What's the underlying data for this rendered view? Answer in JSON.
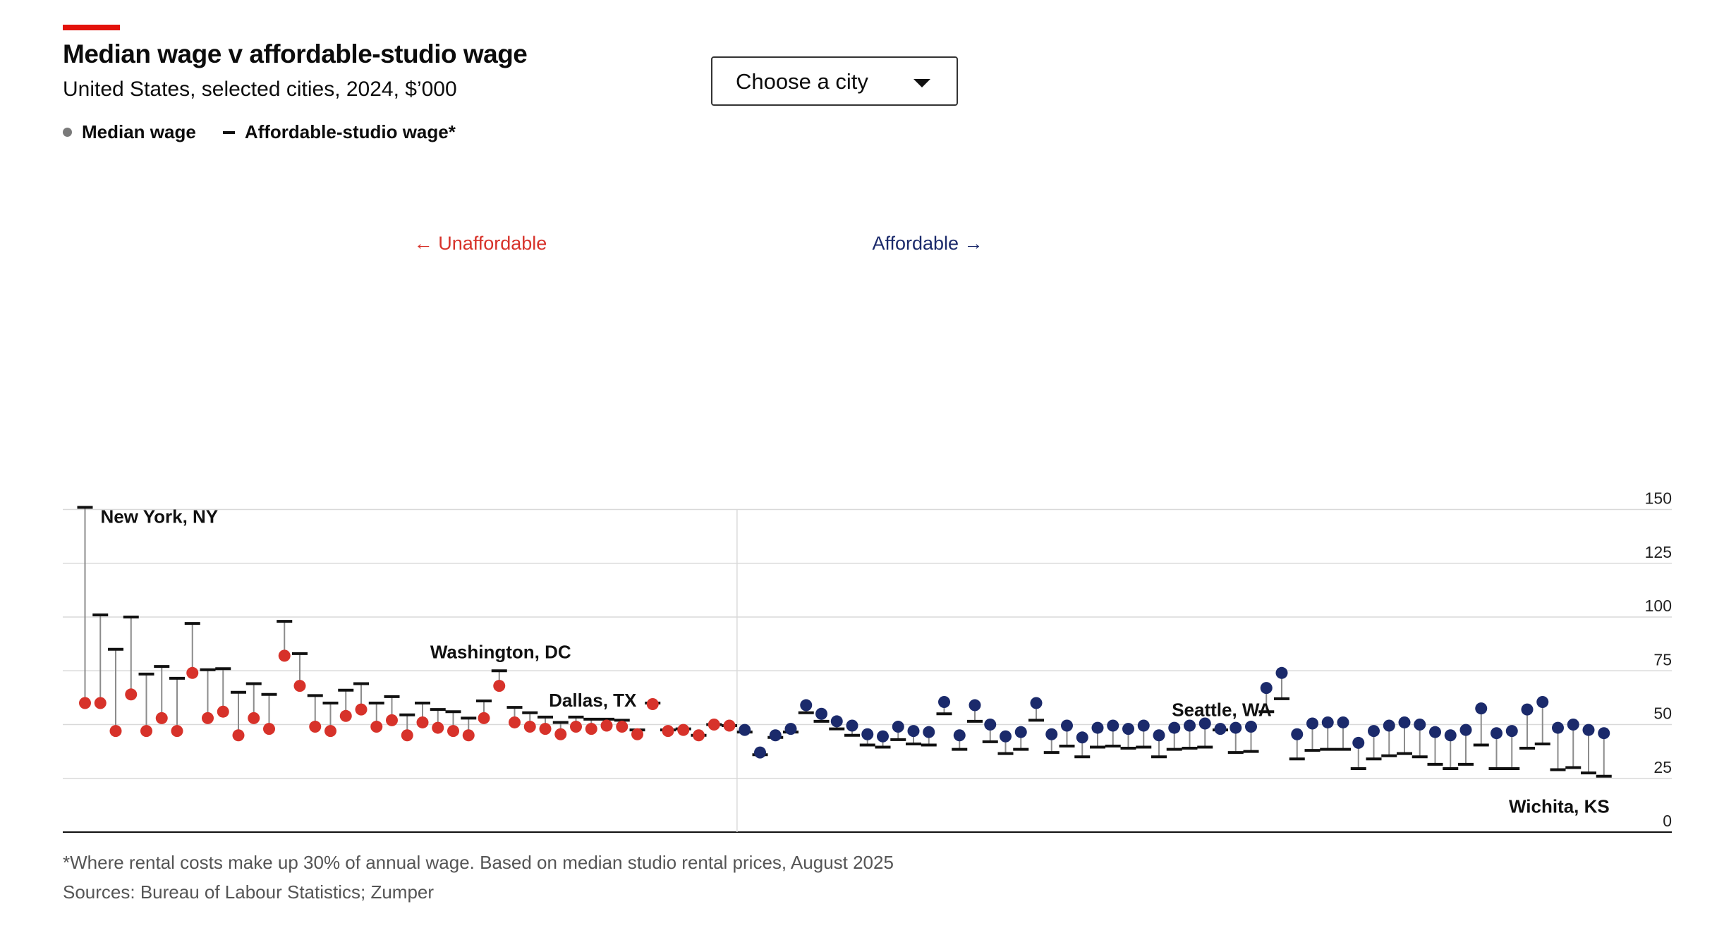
{
  "header": {
    "title": "Median wage v affordable-studio wage",
    "subtitle": "United States, selected cities, 2024, $’000"
  },
  "legend": {
    "median_label": "Median wage",
    "studio_label": "Affordable-studio wage*"
  },
  "dropdown": {
    "label": "Choose a city"
  },
  "regions": {
    "left_label": "← Unaffordable",
    "right_label": "Affordable →"
  },
  "footer": {
    "note": "*Where rental costs make up 30% of annual wage. Based on median studio rental prices, August 2025",
    "source": "Sources: Bureau of Labour Statistics; Zumper"
  },
  "colors": {
    "unaffordable": "#d7322a",
    "affordable": "#1b2a6b",
    "accent": "#e3120b",
    "stem": "#8c8c8c",
    "grid": "#d9d9d9"
  },
  "chart_data": {
    "type": "dumbbell",
    "y_axis": {
      "ylim": [
        0,
        150
      ],
      "ticks": [
        0,
        25,
        50,
        75,
        100,
        125,
        150
      ],
      "position": "right"
    },
    "grid": true,
    "divider_after_index": 42,
    "series": [
      {
        "name": "Median wage",
        "key": "median"
      },
      {
        "name": "Affordable-studio wage*",
        "key": "studio"
      }
    ],
    "median": [
      60.0,
      60.0,
      47.0,
      64.0,
      47.0,
      53.0,
      47.0,
      74.0,
      53.0,
      56.0,
      45.0,
      53.0,
      48.0,
      82.0,
      68.0,
      49.0,
      47.0,
      54.0,
      57.0,
      49.0,
      52.0,
      45.0,
      51.0,
      48.5,
      47.0,
      45.0,
      53.0,
      68.0,
      51.0,
      49.0,
      48.0,
      45.5,
      49.0,
      48.0,
      49.5,
      49.0,
      45.5,
      59.5,
      47.0,
      47.5,
      45.0,
      50.0,
      49.5,
      47.5,
      37.0,
      45.0,
      48.0,
      59.0,
      55.0,
      51.5,
      49.5,
      45.5,
      44.5,
      49.0,
      47.0,
      46.5,
      60.5,
      45.0,
      59.0,
      50.0,
      44.5,
      46.5,
      60.0,
      45.5,
      49.5,
      44.0,
      48.5,
      49.5,
      48.0,
      49.5,
      45.0,
      48.5,
      49.5,
      50.5,
      48.0,
      48.5,
      49.0,
      67.0,
      74.0,
      45.5,
      50.5,
      51.0,
      51.0,
      41.5,
      47.0,
      49.5,
      51.0,
      50.0,
      46.5,
      45.0,
      47.5,
      57.5,
      46.0,
      47.0,
      57.0,
      60.5,
      48.5,
      50.0,
      47.5,
      46.0
    ],
    "studio": [
      151.0,
      101.0,
      85.0,
      100.0,
      73.5,
      77.0,
      71.5,
      97.0,
      75.5,
      76.0,
      65.0,
      69.0,
      64.0,
      98.0,
      83.0,
      63.5,
      60.0,
      66.0,
      69.0,
      60.0,
      63.0,
      54.5,
      60.0,
      57.0,
      56.0,
      53.0,
      61.0,
      75.0,
      58.0,
      55.5,
      53.5,
      51.0,
      53.5,
      52.5,
      52.5,
      52.0,
      47.5,
      60.0,
      47.5,
      48.0,
      45.0,
      50.0,
      49.5,
      46.5,
      36.0,
      44.0,
      46.5,
      55.5,
      51.5,
      48.0,
      45.0,
      40.5,
      39.5,
      43.0,
      41.0,
      40.5,
      55.0,
      38.5,
      51.5,
      42.0,
      36.5,
      38.5,
      52.0,
      37.0,
      40.0,
      35.0,
      39.5,
      40.0,
      39.0,
      39.5,
      35.0,
      38.5,
      39.0,
      39.5,
      47.5,
      37.0,
      37.5,
      56.0,
      62.0,
      34.0,
      38.0,
      38.5,
      38.5,
      29.5,
      34.0,
      35.5,
      36.5,
      35.0,
      31.5,
      29.5,
      31.5,
      40.5,
      29.5,
      29.5,
      39.0,
      41.0,
      29.0,
      30.0,
      27.5,
      26.0
    ],
    "annotations": [
      {
        "label": "New York, NY",
        "index": 0,
        "anchor": "studio",
        "align": "left"
      },
      {
        "label": "Washington, DC",
        "index": 27,
        "anchor": "studio",
        "align": "center"
      },
      {
        "label": "Dallas, TX",
        "index": 33,
        "anchor": "studio",
        "align": "center"
      },
      {
        "label": "Seattle, WA",
        "index": 74,
        "anchor": "median",
        "align": "center"
      },
      {
        "label": "Wichita, KS",
        "index": 99,
        "anchor": "studio",
        "align": "right"
      }
    ]
  }
}
